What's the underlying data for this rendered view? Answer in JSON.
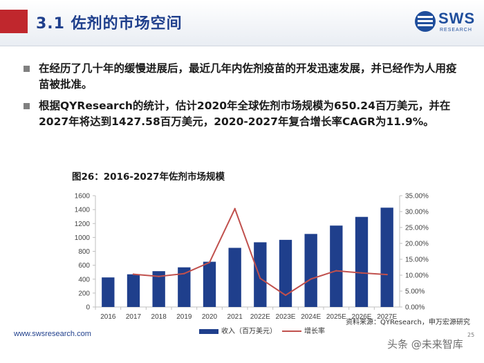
{
  "header": {
    "title": "3.1 佐剂的市场空间",
    "logo_text": "SWS",
    "logo_sub": "RESEARCH",
    "accent": "#c0272d",
    "title_color": "#1f3f8c"
  },
  "bullets": [
    "在经历了几十年的缓慢进展后，最近几年内佐剂疫苗的开发迅速发展，并已经作为人用疫苗被批准。",
    "根据QYResearch的统计，估计2020年全球佐剂市场规模为650.24百万美元，并在2027年将达到1427.58百万美元，2020-2027年复合增长率CAGR为11.9%。"
  ],
  "chart_title": "图26：2016-2027年佐剂市场规模",
  "chart_data": {
    "type": "bar+line",
    "title": "图26：2016-2027年佐剂市场规模",
    "categories": [
      "2016",
      "2017",
      "2018",
      "2019",
      "2020",
      "2021",
      "2022E",
      "2023E",
      "2024E",
      "2025E",
      "2026E",
      "2027E"
    ],
    "series": [
      {
        "name": "收入（百万美元）",
        "type": "bar",
        "axis": "left",
        "color": "#1f3f8c",
        "values": [
          425,
          470,
          515,
          570,
          650.24,
          850,
          930,
          965,
          1050,
          1170,
          1295,
          1427.58
        ]
      },
      {
        "name": "增长率",
        "type": "line",
        "axis": "right",
        "color": "#c0504d",
        "values": [
          null,
          10.3,
          9.6,
          10.5,
          14.0,
          30.9,
          9.0,
          3.7,
          8.8,
          11.4,
          10.7,
          10.2
        ]
      }
    ],
    "y_left": {
      "min": 0,
      "max": 1600,
      "step": 200,
      "ticks": [
        "0",
        "200",
        "400",
        "600",
        "800",
        "1000",
        "1200",
        "1400",
        "1600"
      ]
    },
    "y_right": {
      "min": 0,
      "max": 35,
      "step": 5,
      "ticks": [
        "0.00%",
        "5.00%",
        "10.00%",
        "15.00%",
        "20.00%",
        "25.00%",
        "30.00%",
        "35.00%"
      ]
    },
    "grid": false,
    "legend": "bottom"
  },
  "source": "资料来源：QYResearch，申万宏源研究",
  "footer": {
    "url": "www.swsresearch.com",
    "page": "25",
    "watermark": "头条 @未来智库"
  }
}
